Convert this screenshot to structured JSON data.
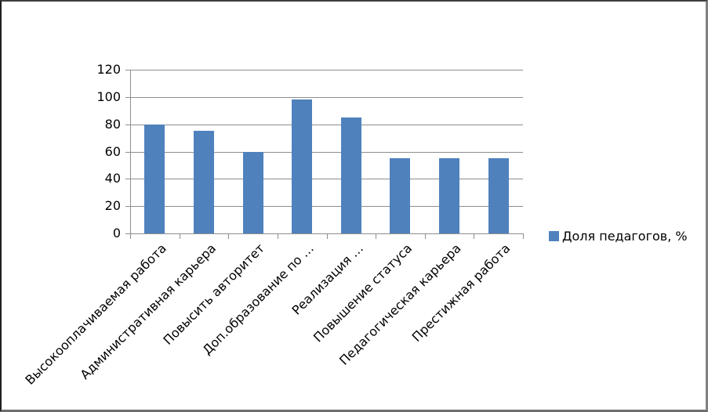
{
  "chart_data": {
    "type": "bar",
    "categories": [
      "Высокооплачиваемая работа",
      "Административная карьера",
      "Повысить авторитет",
      "Доп.образование по …",
      "Реализация …",
      "Повышение статуса",
      "Педагогическая карьера",
      "Престижная работа"
    ],
    "values": [
      80,
      75,
      60,
      98,
      85,
      55,
      55,
      55
    ],
    "series_name": "Доля педагогов, %",
    "ylim": [
      0,
      120
    ],
    "yticks": [
      0,
      20,
      40,
      60,
      80,
      100,
      120
    ],
    "grid": true,
    "legend_position": "right",
    "bar_color": "#4F81BD",
    "gridline_color": "#8E8E8E",
    "axis_color": "#8E8E8E",
    "text_color": "#000000",
    "background_color": "#FFFFFF"
  },
  "legend": {
    "label": "Доля педагогов, %"
  }
}
